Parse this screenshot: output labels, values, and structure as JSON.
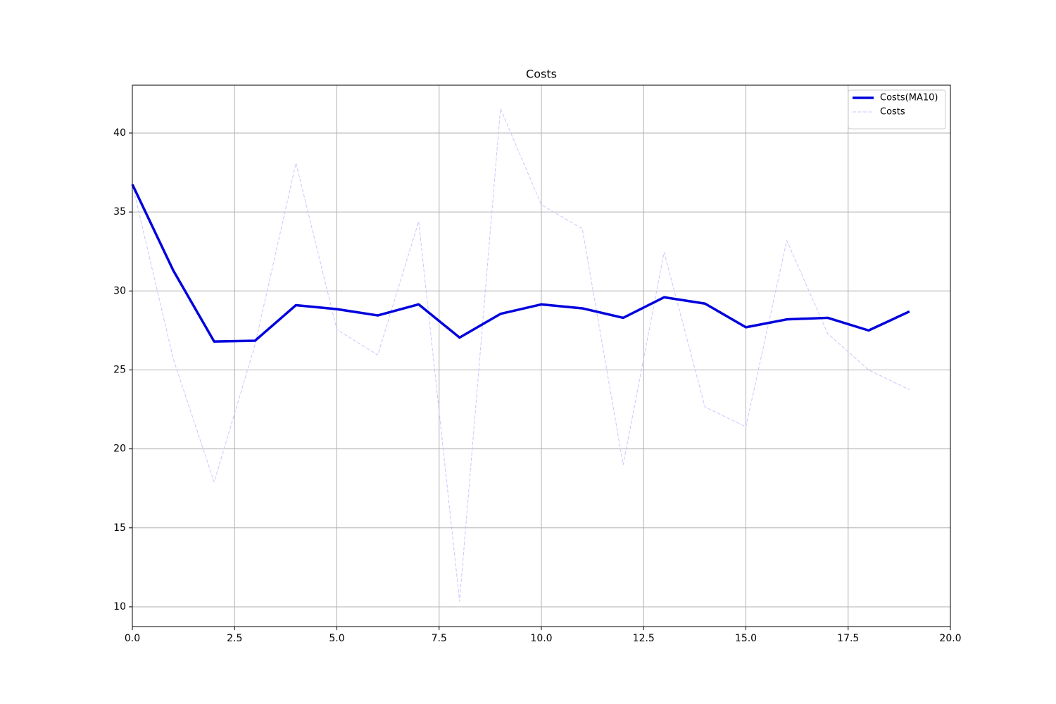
{
  "chart_data": {
    "type": "line",
    "title": "Costs",
    "x": [
      0,
      1,
      2,
      3,
      4,
      5,
      6,
      7,
      8,
      9,
      10,
      11,
      12,
      13,
      14,
      15,
      16,
      17,
      18,
      19
    ],
    "series": [
      {
        "name": "Costs(MA10)",
        "color": "#0000dd",
        "linestyle": "solid",
        "values": [
          36.75,
          31.3,
          26.8,
          26.85,
          29.1,
          28.85,
          28.45,
          29.15,
          27.05,
          28.55,
          29.15,
          28.9,
          28.3,
          29.6,
          29.2,
          27.7,
          28.2,
          28.3,
          27.5,
          28.7
        ]
      },
      {
        "name": "Costs",
        "color": "#c8c8ff",
        "linestyle": "dashed",
        "values": [
          36.75,
          25.7,
          17.9,
          26.6,
          38.1,
          27.55,
          25.95,
          34.4,
          10.35,
          41.55,
          35.45,
          33.95,
          19.0,
          32.45,
          22.65,
          21.4,
          33.2,
          27.3,
          25.0,
          23.75
        ]
      }
    ],
    "xlim": [
      0,
      20
    ],
    "ylim": [
      8.75,
      43.03
    ],
    "xticks": [
      {
        "value": 0,
        "label": "0.0"
      },
      2.5,
      {
        "value": 5,
        "label": "5.0"
      },
      7.5,
      {
        "value": 10,
        "label": "10.0"
      },
      12.5,
      {
        "value": 15,
        "label": "15.0"
      },
      17.5,
      {
        "value": 20,
        "label": "20.0"
      }
    ],
    "yticks": [
      10,
      15,
      20,
      25,
      30,
      35,
      40
    ],
    "grid": true,
    "legend": "upper right"
  }
}
